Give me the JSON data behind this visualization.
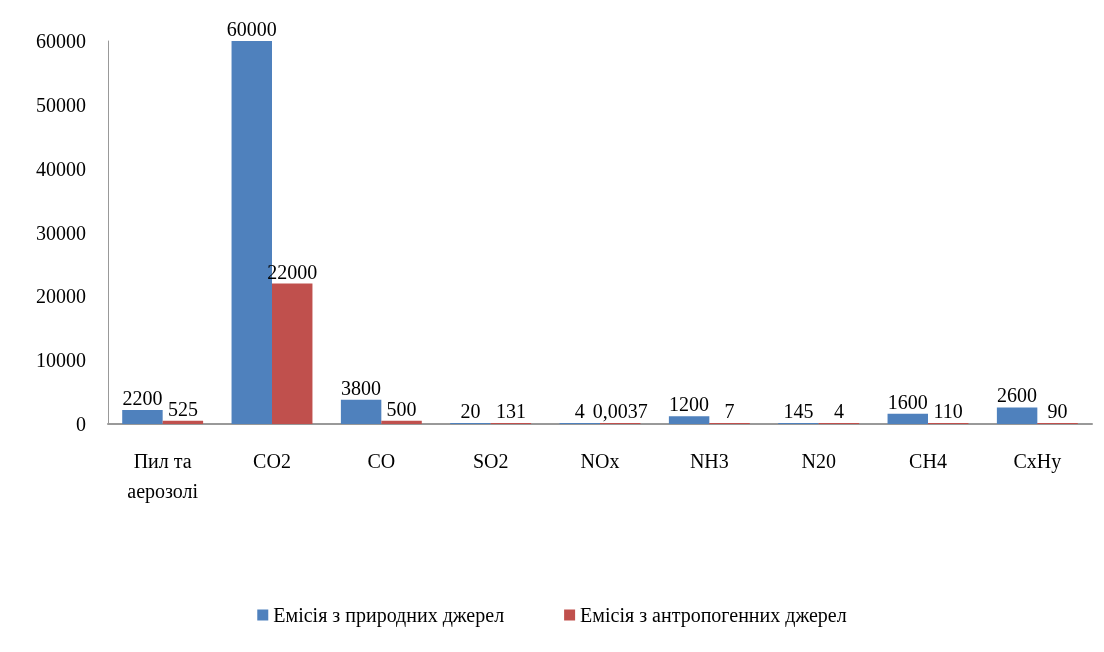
{
  "chart_data": {
    "type": "bar",
    "categories": [
      "Пил та аерозолі",
      "CO2",
      "CO",
      "SO2",
      "NOx",
      "NH3",
      "N20",
      "CH4",
      "CxHy"
    ],
    "series": [
      {
        "name": "Емісія з природних джерел",
        "color": "#4f81bd",
        "values": [
          2200,
          60000,
          3800,
          20,
          4,
          1200,
          145,
          1600,
          2600
        ],
        "value_labels": [
          "2200",
          "60000",
          "3800",
          "20",
          "4",
          "1200",
          "145",
          "1600",
          "2600"
        ]
      },
      {
        "name": "Емісія з антропогенних джерел",
        "color": "#c0504d",
        "values": [
          525,
          22000,
          500,
          131,
          0.0037,
          7,
          4,
          110,
          90
        ],
        "value_labels": [
          "525",
          "22000",
          "500",
          "131",
          "0,0037",
          "7",
          "4",
          "110",
          "90"
        ]
      }
    ],
    "ylim": [
      0,
      60000
    ],
    "yticks": [
      0,
      10000,
      20000,
      30000,
      40000,
      50000,
      60000
    ],
    "grid": false,
    "legend": "bottom"
  }
}
